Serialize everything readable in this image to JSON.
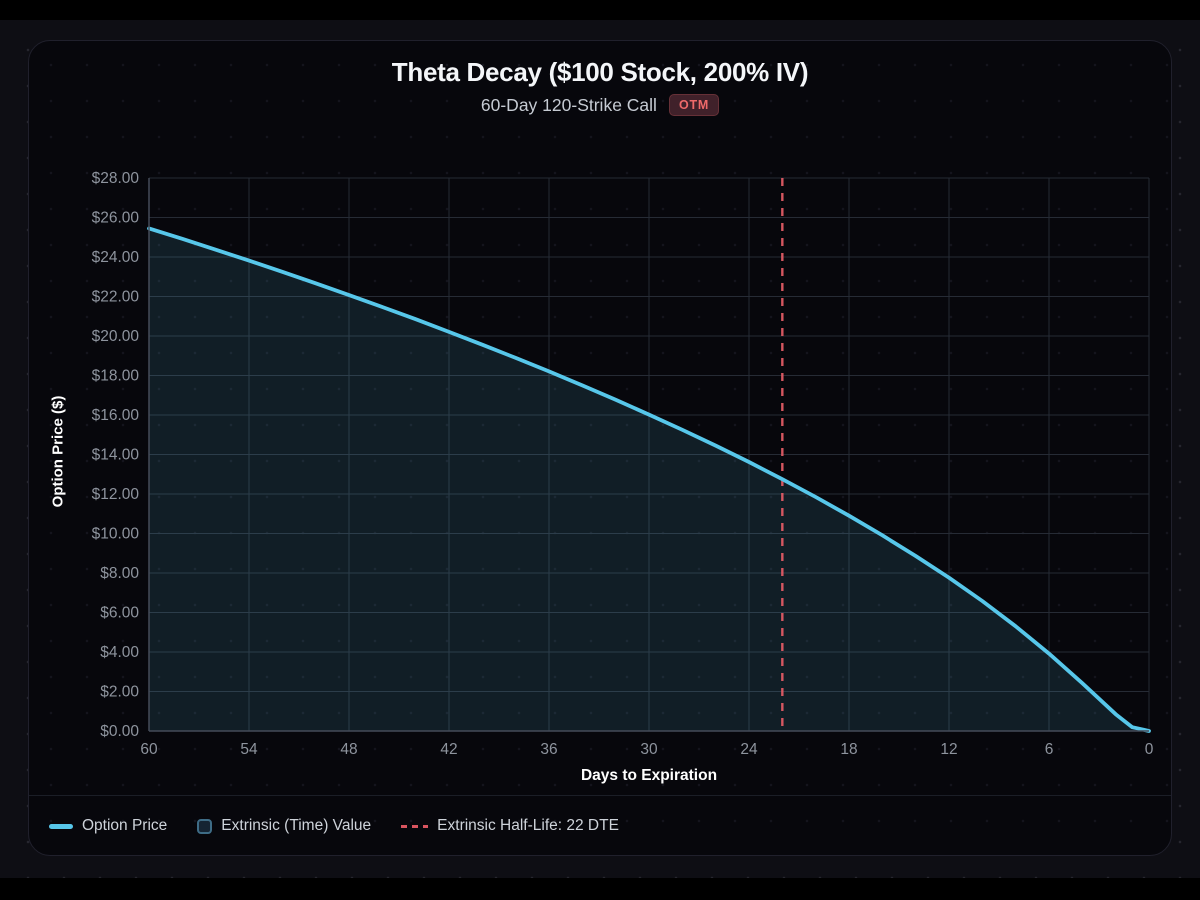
{
  "header": {
    "title": "Theta Decay ($100 Stock, 200% IV)",
    "subtitle": "60-Day 120-Strike Call",
    "badge": "OTM"
  },
  "legend": {
    "option_price": "Option Price",
    "extrinsic": "Extrinsic (Time) Value",
    "half_life": "Extrinsic Half-Life: 22 DTE"
  },
  "colors": {
    "line": "#57c7ea",
    "area_fill": "rgba(87,199,234,0.12)",
    "half_life_line": "#e05b65",
    "grid": "#262b35",
    "axis": "#454c59",
    "tick_text": "#8e949e",
    "badge_text": "#ee6a6a"
  },
  "chart_data": {
    "type": "area",
    "title": "Theta Decay ($100 Stock, 200% IV)",
    "subtitle": "60-Day 120-Strike Call",
    "xlabel": "Days to Expiration",
    "ylabel": "Option Price ($)",
    "x_reversed": true,
    "xlim": [
      60,
      0
    ],
    "ylim": [
      0,
      28
    ],
    "x_ticks": [
      60,
      54,
      48,
      42,
      36,
      30,
      24,
      18,
      12,
      6,
      0
    ],
    "y_tick_step": 2,
    "y_tick_labels": [
      "$0.00",
      "$2.00",
      "$4.00",
      "$6.00",
      "$8.00",
      "$10.00",
      "$12.00",
      "$14.00",
      "$16.00",
      "$18.00",
      "$20.00",
      "$22.00",
      "$24.00",
      "$26.00",
      "$28.00"
    ],
    "grid": true,
    "legend_position": "bottom-left",
    "series": [
      {
        "name": "Option Price",
        "x": [
          60,
          58,
          56,
          54,
          52,
          50,
          48,
          46,
          44,
          42,
          40,
          38,
          36,
          34,
          32,
          30,
          28,
          26,
          24,
          22,
          20,
          18,
          16,
          14,
          12,
          10,
          8,
          6,
          4,
          2,
          1,
          0
        ],
        "values": [
          25.45,
          24.92,
          24.37,
          23.82,
          23.25,
          22.67,
          22.07,
          21.47,
          20.85,
          20.21,
          19.56,
          18.89,
          18.21,
          17.5,
          16.77,
          16.02,
          15.25,
          14.45,
          13.62,
          12.75,
          11.85,
          10.9,
          9.91,
          8.86,
          7.76,
          6.58,
          5.3,
          3.92,
          2.42,
          0.85,
          0.19,
          0.0
        ]
      }
    ],
    "area_label": "Extrinsic (Time) Value",
    "half_life": {
      "label": "Extrinsic Half-Life: 22 DTE",
      "x": 22
    }
  }
}
